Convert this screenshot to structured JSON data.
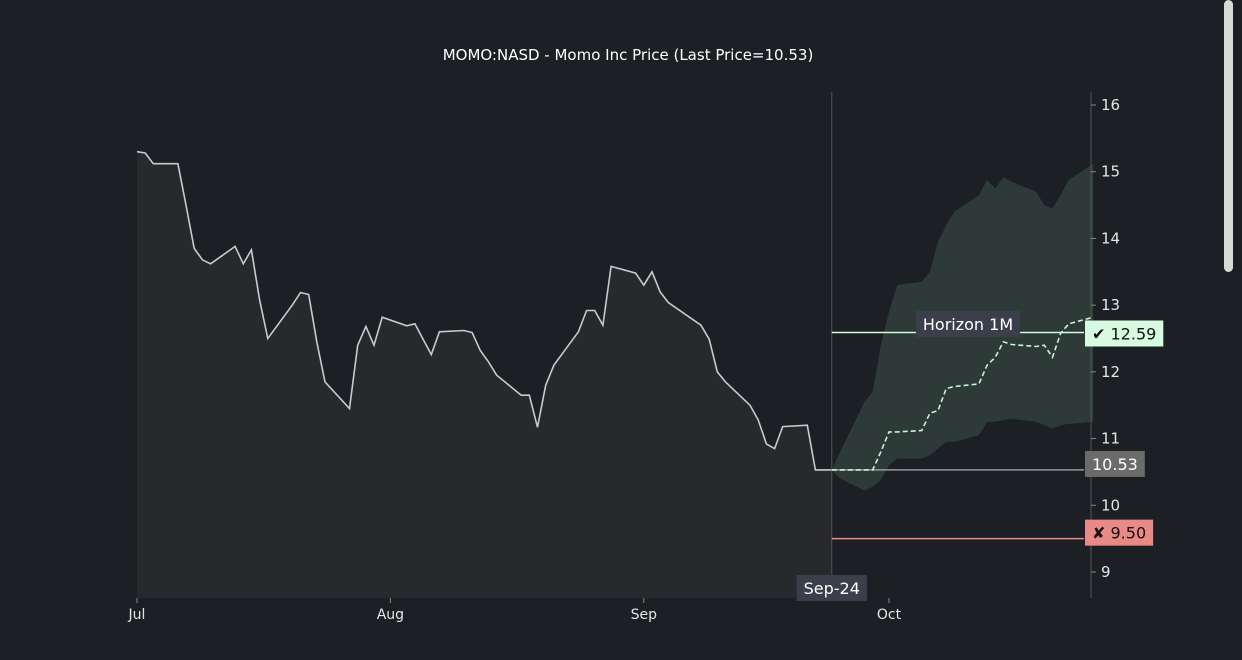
{
  "chart_data": {
    "type": "line",
    "title": "MOMO:NASD - Momo Inc Price (Last Price=10.53)",
    "x_tick_labels": [
      "Jul",
      "Aug",
      "Sep",
      "Oct"
    ],
    "y_ticks": [
      9,
      10,
      11,
      12,
      13,
      14,
      15,
      16
    ],
    "ylim": [
      8.6,
      16.2
    ],
    "history_series": {
      "name": "Price",
      "start_date": "2020-07-01",
      "x": [
        "2020-07-01",
        "2020-07-02",
        "2020-07-03",
        "2020-07-06",
        "2020-07-07",
        "2020-07-08",
        "2020-07-09",
        "2020-07-10",
        "2020-07-13",
        "2020-07-14",
        "2020-07-15",
        "2020-07-16",
        "2020-07-17",
        "2020-07-20",
        "2020-07-21",
        "2020-07-22",
        "2020-07-23",
        "2020-07-24",
        "2020-07-27",
        "2020-07-28",
        "2020-07-29",
        "2020-07-30",
        "2020-07-31",
        "2020-08-03",
        "2020-08-04",
        "2020-08-05",
        "2020-08-06",
        "2020-08-07",
        "2020-08-10",
        "2020-08-11",
        "2020-08-12",
        "2020-08-13",
        "2020-08-14",
        "2020-08-17",
        "2020-08-18",
        "2020-08-19",
        "2020-08-20",
        "2020-08-21",
        "2020-08-24",
        "2020-08-25",
        "2020-08-26",
        "2020-08-27",
        "2020-08-28",
        "2020-08-31",
        "2020-09-01",
        "2020-09-02",
        "2020-09-03",
        "2020-09-04",
        "2020-09-08",
        "2020-09-09",
        "2020-09-10",
        "2020-09-11",
        "2020-09-14",
        "2020-09-15",
        "2020-09-16",
        "2020-09-17",
        "2020-09-18",
        "2020-09-21",
        "2020-09-22",
        "2020-09-23",
        "2020-09-24"
      ],
      "values": [
        15.3,
        15.28,
        15.12,
        15.12,
        14.5,
        13.85,
        13.68,
        13.62,
        13.88,
        13.62,
        13.83,
        13.08,
        12.5,
        13.0,
        13.19,
        13.16,
        12.45,
        11.85,
        11.45,
        12.4,
        12.68,
        12.4,
        12.82,
        12.69,
        12.72,
        12.49,
        12.26,
        12.6,
        12.62,
        12.59,
        12.32,
        12.15,
        11.95,
        11.65,
        11.65,
        11.17,
        11.8,
        12.1,
        12.6,
        12.92,
        12.92,
        12.7,
        13.58,
        13.48,
        13.3,
        13.5,
        13.2,
        13.04,
        12.7,
        12.49,
        12.0,
        11.85,
        11.5,
        11.28,
        10.92,
        10.85,
        11.18,
        11.2,
        10.53,
        10.53,
        10.53
      ]
    },
    "forecast": {
      "horizon_label": "Horizon 1M",
      "last_date_label": "Sep-24",
      "last_price": 10.53,
      "last_price_label": "10.53",
      "target_high": 12.59,
      "target_high_label": "✔ 12.59",
      "target_low": 9.5,
      "target_low_label": "✘ 9.50",
      "x": [
        "2020-09-24",
        "2020-09-25",
        "2020-09-28",
        "2020-09-29",
        "2020-09-30",
        "2020-10-01",
        "2020-10-02",
        "2020-10-05",
        "2020-10-06",
        "2020-10-07",
        "2020-10-08",
        "2020-10-09",
        "2020-10-12",
        "2020-10-13",
        "2020-10-14",
        "2020-10-15",
        "2020-10-16",
        "2020-10-19",
        "2020-10-20",
        "2020-10-21",
        "2020-10-22",
        "2020-10-23",
        "2020-10-26"
      ],
      "median": [
        10.53,
        10.53,
        10.53,
        10.53,
        10.8,
        11.1,
        11.1,
        11.12,
        11.38,
        11.42,
        11.75,
        11.78,
        11.82,
        12.1,
        12.22,
        12.45,
        12.41,
        12.38,
        12.4,
        12.22,
        12.58,
        12.72,
        12.82
      ],
      "upper": [
        10.53,
        10.8,
        11.55,
        11.7,
        12.4,
        12.9,
        13.3,
        13.35,
        13.5,
        13.95,
        14.2,
        14.4,
        14.65,
        14.88,
        14.75,
        14.92,
        14.85,
        14.7,
        14.5,
        14.45,
        14.65,
        14.88,
        15.12
      ],
      "lower": [
        10.53,
        10.4,
        10.22,
        10.28,
        10.38,
        10.6,
        10.7,
        10.7,
        10.75,
        10.85,
        10.95,
        10.95,
        11.05,
        11.25,
        11.25,
        11.28,
        11.3,
        11.25,
        11.2,
        11.15,
        11.2,
        11.22,
        11.25
      ]
    },
    "colors": {
      "background": "#1c1f24",
      "history_line": "#c9cacb",
      "history_fill": "#27292d",
      "forecast_band": "#2d3a37",
      "forecast_median": "#c8f5d6",
      "target_high": "#d6fbe0",
      "target_low": "#e98a86",
      "last_price_box": "#6b6b6b",
      "vline": "#555555",
      "axis": "#555555"
    },
    "grid": false,
    "legend": "none"
  }
}
